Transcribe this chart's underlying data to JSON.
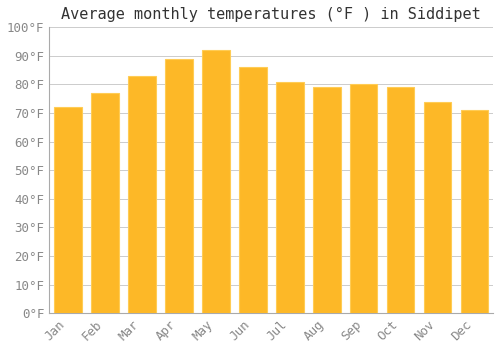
{
  "title": "Average monthly temperatures (°F ) in Siddipet",
  "months": [
    "Jan",
    "Feb",
    "Mar",
    "Apr",
    "May",
    "Jun",
    "Jul",
    "Aug",
    "Sep",
    "Oct",
    "Nov",
    "Dec"
  ],
  "values": [
    72,
    77,
    83,
    89,
    92,
    86,
    81,
    79,
    80,
    79,
    74,
    71
  ],
  "bar_color": "#FDB827",
  "bar_edge_color": "#FFCC55",
  "background_color": "#FFFFFF",
  "plot_bg_color": "#FFFFFF",
  "ylim": [
    0,
    100
  ],
  "yticks": [
    0,
    10,
    20,
    30,
    40,
    50,
    60,
    70,
    80,
    90,
    100
  ],
  "grid_color": "#CCCCCC",
  "title_fontsize": 11,
  "tick_fontsize": 9,
  "font_family": "monospace",
  "tick_color": "#888888",
  "bar_width": 0.75
}
